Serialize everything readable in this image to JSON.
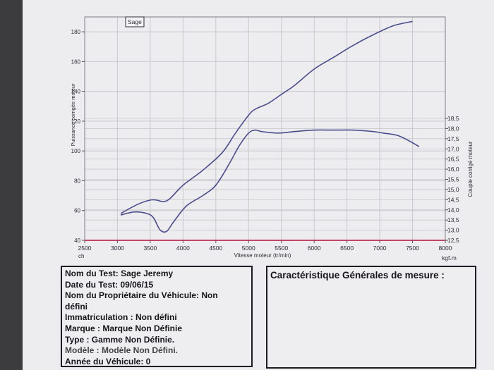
{
  "colors": {
    "curve": "#4a4c8e",
    "baseline": "#c2456a",
    "grid": "#c9c9cf"
  },
  "chart_data": {
    "type": "line",
    "legend_label": "Sage",
    "x_axis": {
      "label": "Vitesse moteur (tr/min)",
      "range": [
        2500,
        8000
      ],
      "ticks": [
        "2500",
        "3000",
        "3500",
        "4000",
        "4500",
        "5000",
        "5500",
        "6000",
        "6500",
        "7000",
        "7500",
        "8000"
      ],
      "unit_left": "ch",
      "unit_right": "kgf.m"
    },
    "y_left": {
      "label": "Puissance corrigée moteur",
      "range": [
        40,
        190
      ],
      "ticks": [
        "40",
        "60",
        "80",
        "100",
        "120",
        "140",
        "160",
        "180"
      ]
    },
    "y_right": {
      "label": "Couple corrigé moteur",
      "range": [
        12.5,
        18.5
      ],
      "ticks": [
        "12,5",
        "13,0",
        "13,5",
        "14,0",
        "14,5",
        "15,0",
        "15,5",
        "16,0",
        "16,5",
        "17,0",
        "17,5",
        "18,0",
        "18,5"
      ]
    },
    "grid": true,
    "series": [
      {
        "axis": "left",
        "x": [
          3050,
          3300,
          3500,
          3600,
          3700,
          3800,
          4000,
          4300,
          4600,
          4800,
          5000,
          5100,
          5300,
          5500,
          5700,
          6000,
          6300,
          6600,
          6900,
          7200,
          7500
        ],
        "y": [
          58,
          64,
          67,
          67,
          66,
          68,
          77,
          87,
          99,
          112,
          124,
          128,
          132,
          138,
          144,
          155,
          163,
          171,
          178,
          184,
          187
        ]
      },
      {
        "axis": "left",
        "x": [
          3050,
          3250,
          3450,
          3550,
          3650,
          3750,
          3850,
          4050,
          4300,
          4500,
          4700,
          4850,
          5000,
          5100,
          5200,
          5450,
          5700,
          6000,
          6300,
          6600,
          6900,
          7050,
          7300,
          7600
        ],
        "y": [
          57,
          59,
          58,
          55,
          47,
          46,
          52,
          63,
          70,
          77,
          91,
          103,
          112,
          114,
          113,
          112,
          113,
          114,
          114,
          114,
          113,
          112,
          110,
          103
        ]
      }
    ]
  },
  "info": {
    "lines": [
      "Nom du Test: Sage Jeremy",
      "Date du Test: 09/06/15",
      "Nom du Propriétaire du Véhicule: Non",
      "défini",
      "Immatriculation  : Non défini",
      "Marque  : Marque Non Définie",
      "Type  : Gamme Non Définie.",
      "Modèle  : Modèle Non Défini.",
      "Année du Véhicule: 0"
    ]
  },
  "measures": {
    "title": "Caractéristique Générales de mesure :"
  }
}
